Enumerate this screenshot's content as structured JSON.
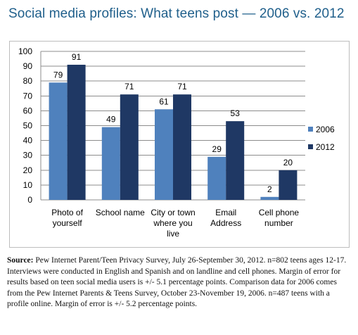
{
  "title": "Social media profiles: What teens post — 2006 vs. 2012",
  "source": {
    "label": "Source:",
    "text": "Pew Internet Parent/Teen Privacy Survey, July 26-September 30, 2012. n=802 teens ages 12-17.  Interviews were conducted in English and Spanish and on landline and cell phones.  Margin of error for results based on teen social media users is +/- 5.1 percentage points. Comparison data for 2006 comes from the Pew Internet Parents & Teens Survey, October 23-November 19, 2006.  n=487 teens with a profile online. Margin of error is +/- 5.2 percentage points."
  },
  "chart_data": {
    "type": "bar",
    "categories": [
      [
        "Photo of",
        "yourself"
      ],
      [
        "School name"
      ],
      [
        "City or town",
        "where you",
        "live"
      ],
      [
        "Email",
        "Address"
      ],
      [
        "Cell phone",
        "number"
      ]
    ],
    "series": [
      {
        "name": "2006",
        "color": "#4f81bd",
        "values": [
          79,
          49,
          61,
          29,
          2
        ]
      },
      {
        "name": "2012",
        "color": "#1f3864",
        "values": [
          91,
          71,
          71,
          53,
          20
        ]
      }
    ],
    "ylim": [
      0,
      100
    ],
    "yticks": [
      0,
      10,
      20,
      30,
      40,
      50,
      60,
      70,
      80,
      90,
      100
    ],
    "grid": true,
    "legend_position": "right"
  }
}
